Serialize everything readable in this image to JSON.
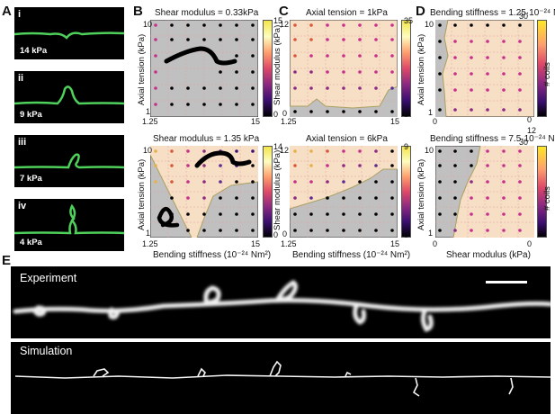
{
  "panels": {
    "A": {
      "label": "A",
      "subpanels": [
        {
          "label": "i",
          "value": "14 kPa"
        },
        {
          "label": "ii",
          "value": "9 kPa"
        },
        {
          "label": "iii",
          "value": "7 kPa"
        },
        {
          "label": "iv",
          "value": "4 kPa"
        }
      ]
    },
    "B": {
      "label": "B",
      "top_title": "Shear modulus = 0.33kPa",
      "bottom_title": "Shear modulus = 1.35 kPa",
      "ylabel": "Axial tension (kPa)",
      "xlabel": "Bending stiffness (10⁻²⁴ Nm²)",
      "xticks": [
        "1.25",
        "15"
      ],
      "yticks": [
        "1",
        "10"
      ],
      "cb_top": [
        "15",
        "0"
      ],
      "cb_bottom": [
        "14",
        "0"
      ]
    },
    "C": {
      "label": "C",
      "top_title": "Axial tension = 1kPa",
      "bottom_title": "Axial tension = 6kPa",
      "ylabel": "Shear modulus (kPa)",
      "xlabel": "Bending stiffness (10⁻²⁴ Nm²)",
      "xticks": [
        "1.25",
        "15"
      ],
      "yticks": [
        "0",
        "12"
      ],
      "cb_top": [
        "35",
        "0"
      ],
      "cb_bottom": [
        "9",
        "0"
      ]
    },
    "D": {
      "label": "D",
      "top_title": "Bending stiffness = 1.25·10⁻²⁴ Nm²",
      "bottom_title": "Bending stiffness = 7.5·10⁻²⁴ Nm²",
      "ylabel": "Axial tension (kPa)",
      "xlabel": "Shear modulus (kPa)",
      "xticks": [
        "0",
        "12"
      ],
      "yticks": [
        "1",
        "10"
      ],
      "cb_top": [
        "30",
        "0"
      ],
      "cb_bottom": [
        "30",
        "0"
      ],
      "cb_label": "# coils"
    },
    "E": {
      "label": "E",
      "experiment_label": "Experiment",
      "simulation_label": "Simulation"
    }
  },
  "colors": {
    "coil_region": "#f7dfc6",
    "straight_region": "#c0c0c0",
    "green": "#4fd05a",
    "boundary": "#a8a060"
  }
}
